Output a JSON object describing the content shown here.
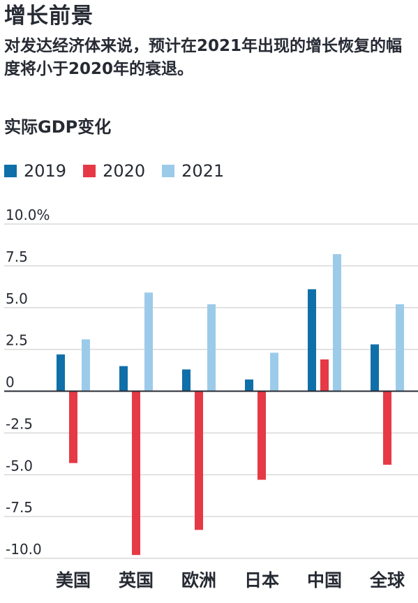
{
  "header": {
    "title": "增长前景",
    "subtitle": "对发达经济体来说，预计在2021年出现的增长恢复的幅度将小于2020年的衰退。"
  },
  "chart_data": {
    "type": "bar",
    "title": "实际GDP变化",
    "categories": [
      "美国",
      "英国",
      "欧洲",
      "日本",
      "中国",
      "全球"
    ],
    "series": [
      {
        "name": "2019",
        "color": "#0f6fa8",
        "values": [
          2.2,
          1.5,
          1.3,
          0.7,
          6.1,
          2.8
        ]
      },
      {
        "name": "2020",
        "color": "#e63946",
        "values": [
          -4.3,
          -9.8,
          -8.3,
          -5.3,
          1.9,
          -4.4
        ]
      },
      {
        "name": "2021",
        "color": "#9ccbea",
        "values": [
          3.1,
          5.9,
          5.2,
          2.3,
          8.2,
          5.2
        ]
      }
    ],
    "ylim": [
      -10,
      10
    ],
    "yticks": [
      10,
      7.5,
      5,
      2.5,
      0,
      -2.5,
      -5,
      -7.5,
      -10
    ],
    "ytick_labels": [
      "10.0%",
      "7.5",
      "5.0",
      "2.5",
      "0",
      "-2.5",
      "-5.0",
      "-7.5",
      "-10.0"
    ],
    "grid": true,
    "legend_position": "top-left"
  }
}
